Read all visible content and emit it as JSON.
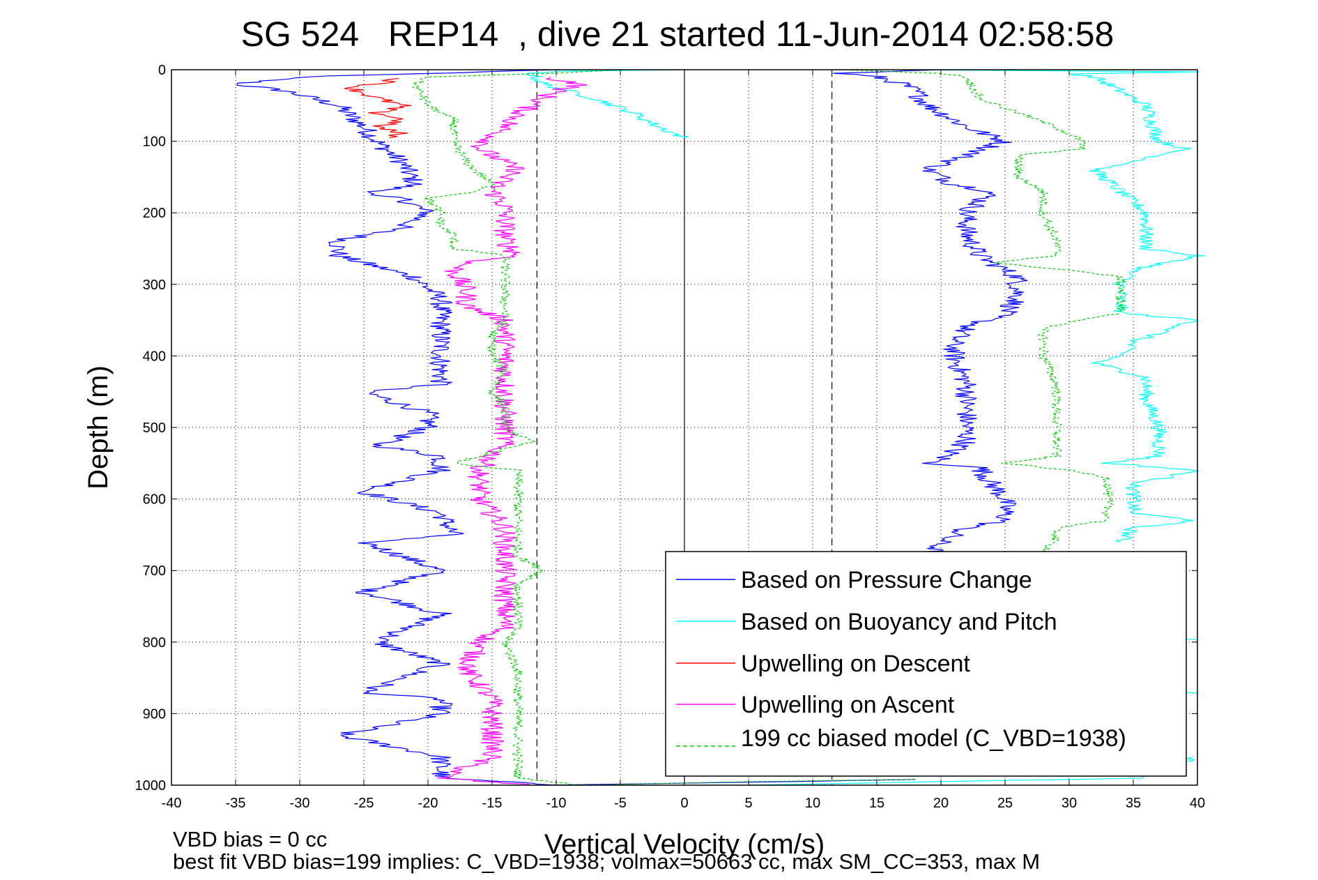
{
  "chart_data": {
    "type": "line",
    "title": "SG 524   REP14  , dive 21 started 11-Jun-2014 02:58:58",
    "xlabel": "Vertical Velocity (cm/s)",
    "ylabel": "Depth (m)",
    "xlim": [
      -40,
      40
    ],
    "ylim": [
      0,
      1000
    ],
    "y_reversed": true,
    "grid": true,
    "x_ticks": [
      "-40",
      "-35",
      "-30",
      "-25",
      "-20",
      "-15",
      "-10",
      "-5",
      "0",
      "5",
      "10",
      "15",
      "20",
      "25",
      "30",
      "35",
      "40"
    ],
    "y_ticks": [
      "0",
      "100",
      "200",
      "300",
      "400",
      "500",
      "600",
      "700",
      "800",
      "900",
      "1000"
    ],
    "reference_lines": [
      {
        "x": 0,
        "style": "solid"
      },
      {
        "x": -11.5,
        "style": "dashed"
      },
      {
        "x": 11.5,
        "style": "dashed"
      }
    ],
    "legend_position": "bottom-right",
    "series": [
      {
        "name": "Based on Pressure Change",
        "color": "#0000ff",
        "style": "solid",
        "noise": 0.9,
        "segments": [
          {
            "depth": [
              0,
              10,
              20,
              30,
              50,
              80,
              100,
              130,
              160,
              175,
              180,
              200,
              220,
              240,
              260,
              290,
              320,
              360,
              400,
              440,
              450,
              480,
              500,
              525,
              540,
              560,
              590,
              620,
              650,
              660,
              700,
              730,
              760,
              800,
              830,
              870,
              880,
              900,
              930,
              960,
              990,
              1000
            ],
            "x": [
              -10,
              -30,
              -35,
              -31,
              -27,
              -25,
              -24,
              -22,
              -21,
              -25,
              -22,
              -20,
              -22,
              -27,
              -27,
              -21,
              -19,
              -19,
              -19,
              -19,
              -25,
              -20,
              -20,
              -24,
              -19,
              -19,
              -25,
              -19,
              -18,
              -25,
              -19,
              -25,
              -19,
              -24,
              -19,
              -25,
              -19,
              -19,
              -27,
              -19,
              -19,
              -10
            ]
          },
          {
            "depth": [
              1000,
              996,
              992
            ],
            "x": [
              -10,
              5,
              18
            ]
          },
          {
            "depth": [
              0,
              5,
              10,
              20,
              30,
              50,
              80,
              100,
              120,
              140,
              160,
              170,
              200,
              230,
              260,
              290,
              320,
              340,
              360,
              380,
              400,
              440,
              480,
              520,
              545,
              550,
              555,
              580,
              600,
              630,
              640,
              660,
              680
            ],
            "x": [
              20,
              12,
              15,
              17,
              18,
              19,
              22,
              25,
              22,
              19,
              21,
              24,
              22,
              22,
              23,
              26,
              26,
              25,
              22,
              21,
              21,
              22,
              22,
              22,
              20,
              19,
              23,
              24,
              25,
              25,
              22,
              20,
              19
            ]
          }
        ]
      },
      {
        "name": "Based on Buoyancy and Pitch",
        "color": "#00ffff",
        "style": "solid",
        "noise": 0.6,
        "segments": [
          {
            "depth": [
              0,
              2,
              5,
              20,
              40,
              60,
              80,
              95
            ],
            "x": [
              0,
              -10,
              -12,
              -11,
              -7,
              -4,
              -2,
              0
            ]
          },
          {
            "depth": [
              0,
              3,
              6,
              10,
              50,
              100,
              110,
              130,
              140,
              170,
              200,
              230,
              250,
              260,
              280,
              300,
              340,
              350,
              380,
              400,
              410,
              430,
              460,
              500,
              540,
              550,
              560,
              580,
              620,
              630,
              640,
              660
            ],
            "x": [
              17,
              40,
              30,
              32,
              36,
              37,
              39,
              35,
              32,
              34,
              36,
              36,
              36,
              40,
              35,
              34,
              34,
              40,
              35,
              34,
              32,
              36,
              36,
              37,
              37,
              33,
              40,
              35,
              35,
              40,
              35,
              34
            ]
          },
          {
            "depth": [
              795,
              797
            ],
            "x": [
              39,
              40
            ]
          },
          {
            "depth": [
              870,
              872
            ],
            "x": [
              39,
              40
            ]
          },
          {
            "depth": [
              960,
              975,
              990,
              1000
            ],
            "x": [
              40,
              38,
              36,
              5
            ]
          }
        ]
      },
      {
        "name": "Upwelling on Descent",
        "color": "#ff0000",
        "style": "solid",
        "noise": 0.8,
        "segments": [
          {
            "depth": [
              12,
              20,
              25,
              40,
              50,
              60,
              70,
              80,
              90,
              95
            ],
            "x": [
              -22,
              -24,
              -26,
              -24,
              -22,
              -24,
              -22,
              -24,
              -22,
              -23
            ]
          }
        ]
      },
      {
        "name": "Upwelling on Ascent",
        "color": "#ff00ff",
        "style": "solid",
        "noise": 0.9,
        "segments": [
          {
            "depth": [
              10,
              20,
              30,
              50,
              80,
              110,
              120,
              140,
              150,
              170,
              190,
              210,
              240,
              260,
              270,
              280,
              310,
              330,
              350,
              370,
              400,
              440,
              480,
              520,
              560,
              600,
              640,
              660,
              700,
              740,
              780,
              800,
              840,
              880,
              920,
              960,
              990,
              1000
            ],
            "x": [
              -11,
              -8,
              -10,
              -12,
              -14,
              -16,
              -15,
              -13,
              -14,
              -15,
              -14,
              -14,
              -14,
              -13,
              -17,
              -18,
              -17,
              -17,
              -14,
              -14,
              -14,
              -14,
              -14,
              -14,
              -16,
              -16,
              -14,
              -14,
              -14,
              -14,
              -14,
              -16,
              -17,
              -15,
              -15,
              -15,
              -19,
              -12
            ]
          }
        ]
      },
      {
        "name": "199 cc biased model (C_VBD=1938)",
        "color": "#00cc00",
        "style": "dashed",
        "noise": 0.4,
        "segments": [
          {
            "depth": [
              0,
              5,
              10,
              20,
              50,
              70,
              100,
              130,
              160,
              170,
              180,
              200,
              220,
              230,
              250,
              260,
              300,
              330,
              350,
              370,
              400,
              420,
              450,
              470,
              500,
              520,
              550,
              560,
              600,
              640,
              680,
              700,
              720,
              740,
              780,
              800,
              840,
              880,
              920,
              950,
              990,
              1000
            ],
            "x": [
              -5,
              -10,
              -20,
              -21,
              -20,
              -18,
              -18,
              -17,
              -15,
              -16,
              -20,
              -19,
              -19,
              -18,
              -18,
              -14,
              -14,
              -14,
              -14,
              -15,
              -15,
              -14,
              -15,
              -14,
              -14,
              -12,
              -18,
              -13,
              -13,
              -13,
              -13,
              -11,
              -13,
              -13,
              -13,
              -14,
              -13,
              -13,
              -13,
              -13,
              -13,
              -8
            ]
          },
          {
            "depth": [
              1000,
              995,
              992
            ],
            "x": [
              -8,
              5,
              18
            ]
          },
          {
            "depth": [
              0,
              5,
              10,
              40,
              60,
              80,
              100,
              110,
              120,
              130,
              150,
              160,
              170,
              180,
              200,
              240,
              260,
              270,
              280,
              290,
              300,
              340,
              360,
              380,
              400,
              440,
              460,
              500,
              540,
              550,
              560,
              570,
              600,
              630,
              640,
              650,
              680
            ],
            "x": [
              12,
              20,
              22,
              23,
              26,
              29,
              31,
              31,
              26,
              26,
              26,
              27,
              28,
              28,
              28,
              29,
              29,
              24,
              30,
              34,
              34,
              34,
              28,
              28,
              28,
              29,
              29,
              29,
              29,
              25,
              30,
              33,
              33,
              33,
              29,
              29,
              28
            ]
          }
        ]
      }
    ],
    "annotations": [
      "VBD bias = 0 cc",
      "best fit VBD bias=199 implies: C_VBD=1938; volmax=50663 cc, max SM_CC=353, max M"
    ]
  }
}
